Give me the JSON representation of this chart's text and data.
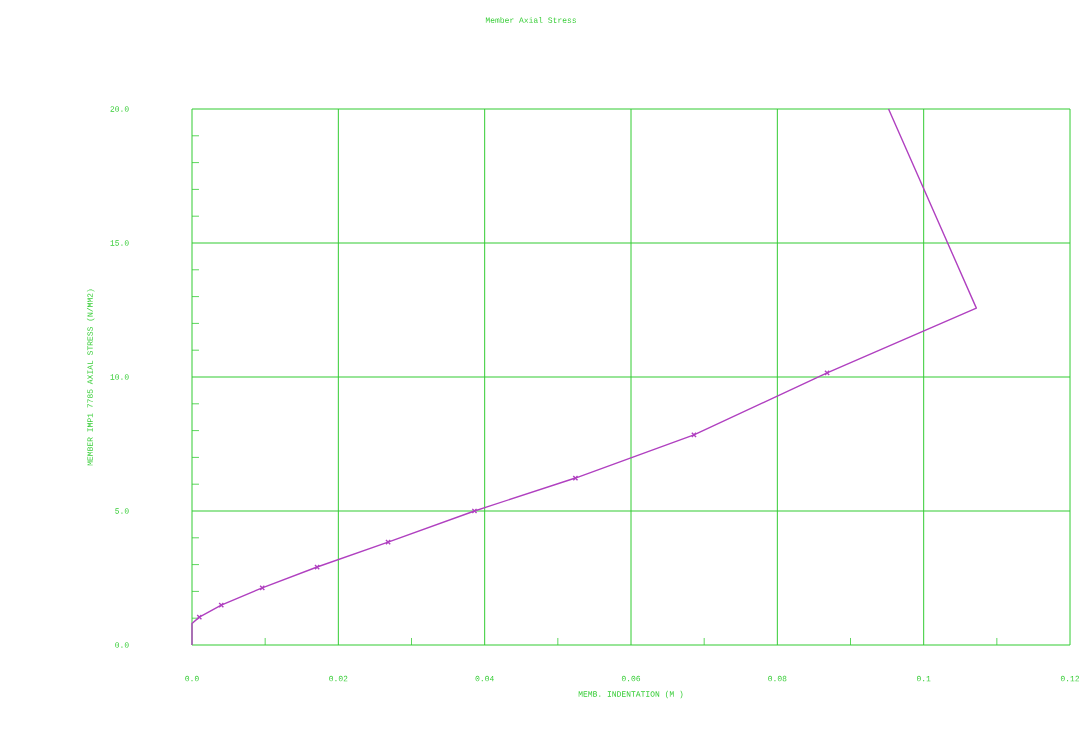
{
  "chart_data": {
    "type": "line",
    "title": "Member Axial Stress",
    "xlabel": "MEMB. INDENTATION (M )",
    "ylabel": "MEMBER IMP1 7785 AXIAL STRESS (N/MM2)",
    "grid": true,
    "xlim": [
      0,
      0.12
    ],
    "ylim": [
      0,
      20
    ],
    "xticks": [
      {
        "value": 0,
        "label": "0.0"
      },
      0.02,
      0.04,
      0.06,
      0.08,
      {
        "value": 0.1,
        "label": "0.1"
      },
      0.12
    ],
    "yticks": [
      {
        "value": 0,
        "label": "0.0"
      },
      {
        "value": 5,
        "label": "5.0"
      },
      {
        "value": 10,
        "label": "10.0"
      },
      {
        "value": 15,
        "label": "15.0"
      },
      {
        "value": 20,
        "label": "20.0"
      }
    ],
    "series": [
      {
        "color": "#b040c0",
        "marker": "none",
        "x": [
          0,
          0,
          0.001,
          0.004,
          0.0096,
          0.0171,
          0.0268,
          0.0386,
          0.0524,
          0.0686,
          0.0868,
          0.1072,
          0.0952
        ],
        "values": [
          0,
          0.8,
          1.04,
          1.49,
          2.13,
          2.91,
          3.84,
          5.0,
          6.23,
          7.84,
          10.15,
          12.57,
          20
        ]
      },
      {
        "type": "scatter",
        "color": "#b040c0",
        "marker": "cross",
        "x": [
          0.001,
          0.004,
          0.0096,
          0.0171,
          0.0268,
          0.0386,
          0.0524,
          0.0686,
          0.0868
        ],
        "values": [
          1.04,
          1.49,
          2.13,
          2.91,
          3.84,
          5.0,
          6.23,
          7.84,
          10.15
        ]
      }
    ]
  }
}
